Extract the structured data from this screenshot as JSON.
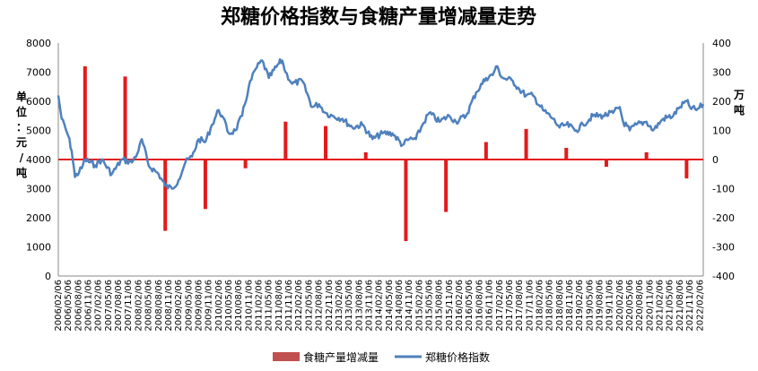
{
  "chart_data": {
    "type": "bar+line",
    "title": "郑糖价格指数与食糖产量增减量走势",
    "ylabel_left": "单位：元/吨",
    "ylabel_right": "万吨",
    "y_left": {
      "min": 0,
      "max": 8000,
      "ticks": [
        0,
        1000,
        2000,
        3000,
        4000,
        5000,
        6000,
        7000,
        8000
      ]
    },
    "y_right": {
      "min": -400,
      "max": 400,
      "ticks": [
        -400,
        -300,
        -200,
        -100,
        0,
        100,
        200,
        300,
        400
      ]
    },
    "x_range": [
      "2006/02/06",
      "2022/03/06"
    ],
    "x_tick_step_months": 3,
    "legend_position": "bottom",
    "grid": false,
    "colors": {
      "bars": "#e31a1c",
      "line": "#4f81bd"
    },
    "series": [
      {
        "name": "食糖产量增减量",
        "kind": "bar",
        "axis": "right",
        "points": [
          {
            "x": "2006/10",
            "y": 320
          },
          {
            "x": "2007/10",
            "y": 285
          },
          {
            "x": "2008/10",
            "y": -245
          },
          {
            "x": "2009/10",
            "y": -170
          },
          {
            "x": "2010/10",
            "y": -30
          },
          {
            "x": "2011/10",
            "y": 130
          },
          {
            "x": "2012/10",
            "y": 115
          },
          {
            "x": "2013/10",
            "y": 25
          },
          {
            "x": "2014/10",
            "y": -280
          },
          {
            "x": "2015/10",
            "y": -180
          },
          {
            "x": "2016/10",
            "y": 60
          },
          {
            "x": "2017/10",
            "y": 105
          },
          {
            "x": "2018/10",
            "y": 40
          },
          {
            "x": "2019/10",
            "y": -25
          },
          {
            "x": "2020/10",
            "y": 25
          },
          {
            "x": "2021/10",
            "y": -65
          }
        ]
      },
      {
        "name": "郑糖价格指数",
        "kind": "line",
        "axis": "left",
        "points": [
          {
            "x": "2006/02",
            "y": 6200
          },
          {
            "x": "2006/03",
            "y": 5400
          },
          {
            "x": "2006/05",
            "y": 4800
          },
          {
            "x": "2006/06",
            "y": 4300
          },
          {
            "x": "2006/07",
            "y": 3400
          },
          {
            "x": "2006/09",
            "y": 3700
          },
          {
            "x": "2006/10",
            "y": 4000
          },
          {
            "x": "2007/01",
            "y": 3800
          },
          {
            "x": "2007/03",
            "y": 4000
          },
          {
            "x": "2007/06",
            "y": 3500
          },
          {
            "x": "2007/09",
            "y": 4000
          },
          {
            "x": "2007/12",
            "y": 3900
          },
          {
            "x": "2008/02",
            "y": 4300
          },
          {
            "x": "2008/03",
            "y": 4700
          },
          {
            "x": "2008/05",
            "y": 3800
          },
          {
            "x": "2008/08",
            "y": 3500
          },
          {
            "x": "2008/10",
            "y": 3100
          },
          {
            "x": "2008/12",
            "y": 3000
          },
          {
            "x": "2009/02",
            "y": 3300
          },
          {
            "x": "2009/04",
            "y": 3900
          },
          {
            "x": "2009/06",
            "y": 4100
          },
          {
            "x": "2009/08",
            "y": 4700
          },
          {
            "x": "2009/10",
            "y": 4600
          },
          {
            "x": "2009/12",
            "y": 5200
          },
          {
            "x": "2010/02",
            "y": 5700
          },
          {
            "x": "2010/03",
            "y": 5500
          },
          {
            "x": "2010/05",
            "y": 4900
          },
          {
            "x": "2010/07",
            "y": 5000
          },
          {
            "x": "2010/09",
            "y": 5500
          },
          {
            "x": "2010/11",
            "y": 6500
          },
          {
            "x": "2011/01",
            "y": 7100
          },
          {
            "x": "2011/03",
            "y": 7400
          },
          {
            "x": "2011/05",
            "y": 6800
          },
          {
            "x": "2011/08",
            "y": 7300
          },
          {
            "x": "2011/09",
            "y": 7400
          },
          {
            "x": "2011/10",
            "y": 7000
          },
          {
            "x": "2011/12",
            "y": 6600
          },
          {
            "x": "2012/03",
            "y": 6700
          },
          {
            "x": "2012/06",
            "y": 5800
          },
          {
            "x": "2012/08",
            "y": 5900
          },
          {
            "x": "2012/10",
            "y": 5600
          },
          {
            "x": "2012/12",
            "y": 5500
          },
          {
            "x": "2013/03",
            "y": 5400
          },
          {
            "x": "2013/06",
            "y": 5100
          },
          {
            "x": "2013/09",
            "y": 5200
          },
          {
            "x": "2013/12",
            "y": 4700
          },
          {
            "x": "2014/03",
            "y": 4900
          },
          {
            "x": "2014/06",
            "y": 4900
          },
          {
            "x": "2014/09",
            "y": 4500
          },
          {
            "x": "2014/11",
            "y": 4700
          },
          {
            "x": "2015/01",
            "y": 4700
          },
          {
            "x": "2015/03",
            "y": 5200
          },
          {
            "x": "2015/05",
            "y": 5600
          },
          {
            "x": "2015/08",
            "y": 5300
          },
          {
            "x": "2015/11",
            "y": 5500
          },
          {
            "x": "2016/01",
            "y": 5300
          },
          {
            "x": "2016/04",
            "y": 5500
          },
          {
            "x": "2016/07",
            "y": 6300
          },
          {
            "x": "2016/10",
            "y": 6800
          },
          {
            "x": "2016/12",
            "y": 6900
          },
          {
            "x": "2017/01",
            "y": 7200
          },
          {
            "x": "2017/03",
            "y": 6800
          },
          {
            "x": "2017/06",
            "y": 6700
          },
          {
            "x": "2017/08",
            "y": 6400
          },
          {
            "x": "2017/10",
            "y": 6200
          },
          {
            "x": "2017/12",
            "y": 6200
          },
          {
            "x": "2018/03",
            "y": 5700
          },
          {
            "x": "2018/06",
            "y": 5400
          },
          {
            "x": "2018/08",
            "y": 5100
          },
          {
            "x": "2018/10",
            "y": 5200
          },
          {
            "x": "2019/01",
            "y": 5000
          },
          {
            "x": "2019/03",
            "y": 5200
          },
          {
            "x": "2019/06",
            "y": 5500
          },
          {
            "x": "2019/09",
            "y": 5500
          },
          {
            "x": "2019/12",
            "y": 5600
          },
          {
            "x": "2020/02",
            "y": 5800
          },
          {
            "x": "2020/03",
            "y": 5300
          },
          {
            "x": "2020/05",
            "y": 5000
          },
          {
            "x": "2020/07",
            "y": 5200
          },
          {
            "x": "2020/10",
            "y": 5300
          },
          {
            "x": "2020/12",
            "y": 5000
          },
          {
            "x": "2021/03",
            "y": 5400
          },
          {
            "x": "2021/06",
            "y": 5500
          },
          {
            "x": "2021/08",
            "y": 5800
          },
          {
            "x": "2021/10",
            "y": 6000
          },
          {
            "x": "2021/11",
            "y": 5800
          },
          {
            "x": "2022/01",
            "y": 5700
          },
          {
            "x": "2022/03",
            "y": 5900
          }
        ]
      }
    ]
  }
}
